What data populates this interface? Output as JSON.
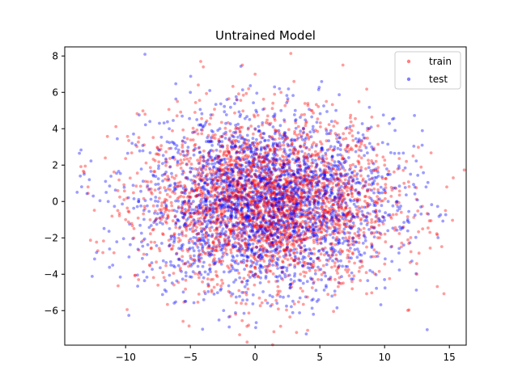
{
  "chart_data": {
    "type": "scatter",
    "title": "Untrained Model",
    "xlabel": "",
    "ylabel": "",
    "xlim": [
      -14.7,
      16.3
    ],
    "ylim": [
      -7.9,
      8.5
    ],
    "xticks": [
      -10,
      -5,
      0,
      5,
      10,
      15
    ],
    "yticks": [
      -6,
      -4,
      -2,
      0,
      2,
      4,
      6,
      8
    ],
    "grid": false,
    "legend_position": "top-right",
    "series": [
      {
        "name": "train",
        "color": "#ff0000",
        "alpha": 0.4,
        "sampled_points": [
          [
            -4.2,
            7.7
          ],
          [
            -4.0,
            7.4
          ],
          [
            0.0,
            7.0
          ],
          [
            3.0,
            6.6
          ],
          [
            -0.5,
            6.2
          ],
          [
            3.2,
            -7.2
          ],
          [
            -0.5,
            -6.8
          ],
          [
            14.8,
            0.8
          ],
          [
            14.7,
            -0.5
          ],
          [
            13.5,
            -1.7
          ],
          [
            -13.2,
            1.6
          ],
          [
            -12.9,
            0.8
          ],
          [
            12.2,
            2.5
          ],
          [
            11.5,
            1.0
          ],
          [
            -9.0,
            -4.3
          ],
          [
            -7.5,
            -4.6
          ],
          [
            7.5,
            -4.8
          ],
          [
            8.8,
            4.0
          ],
          [
            -8.5,
            4.8
          ],
          [
            2.0,
            6.0
          ],
          [
            -1.5,
            -6.2
          ],
          [
            5.5,
            5.5
          ],
          [
            -6.0,
            5.5
          ],
          [
            6.5,
            -4.5
          ],
          [
            1.0,
            0.0
          ],
          [
            2.0,
            0.5
          ],
          [
            3.0,
            -0.5
          ],
          [
            -1.0,
            -1.0
          ],
          [
            0.0,
            1.5
          ],
          [
            -2.0,
            2.0
          ],
          [
            4.0,
            2.5
          ],
          [
            -3.0,
            -2.0
          ],
          [
            5.0,
            -1.5
          ],
          [
            1.5,
            -3.0
          ],
          [
            -4.0,
            0.5
          ],
          [
            6.0,
            1.0
          ],
          [
            -5.0,
            -3.0
          ],
          [
            7.0,
            -2.0
          ],
          [
            -6.0,
            2.0
          ],
          [
            8.0,
            0.5
          ],
          [
            -7.0,
            0.0
          ],
          [
            9.0,
            -1.0
          ],
          [
            2.5,
            3.5
          ],
          [
            -1.5,
            4.0
          ],
          [
            3.5,
            -4.0
          ],
          [
            -2.5,
            -4.5
          ],
          [
            0.5,
            -2.0
          ],
          [
            -0.5,
            2.5
          ],
          [
            10.0,
            2.0
          ],
          [
            -10.0,
            -1.0
          ]
        ]
      },
      {
        "name": "test",
        "color": "#0000ff",
        "alpha": 0.4,
        "sampled_points": [
          [
            -13.2,
            1.5
          ],
          [
            -12.8,
            1.2
          ],
          [
            -13.5,
            1.4
          ],
          [
            -12.5,
            0.3
          ],
          [
            -2.0,
            -6.9
          ],
          [
            4.5,
            -6.2
          ],
          [
            -5.0,
            6.0
          ],
          [
            13.2,
            0.8
          ],
          [
            12.8,
            -0.3
          ],
          [
            12.0,
            1.5
          ],
          [
            -11.0,
            -3.5
          ],
          [
            -9.5,
            3.2
          ],
          [
            9.0,
            3.0
          ],
          [
            10.5,
            -2.5
          ],
          [
            1.5,
            6.3
          ],
          [
            -3.5,
            6.1
          ],
          [
            0.0,
            0.0
          ],
          [
            1.0,
            1.0
          ],
          [
            -1.0,
            0.5
          ],
          [
            2.0,
            -1.0
          ],
          [
            3.0,
            1.5
          ],
          [
            -2.0,
            -0.5
          ],
          [
            4.0,
            -0.5
          ],
          [
            -3.0,
            1.0
          ],
          [
            0.5,
            -1.5
          ],
          [
            5.0,
            0.5
          ],
          [
            -4.0,
            -1.5
          ],
          [
            6.0,
            -0.5
          ],
          [
            1.5,
            2.5
          ],
          [
            -1.5,
            -2.5
          ],
          [
            2.5,
            -2.5
          ],
          [
            -2.5,
            3.0
          ],
          [
            3.5,
            3.0
          ],
          [
            -3.5,
            -3.0
          ],
          [
            7.0,
            1.5
          ],
          [
            -6.0,
            -1.0
          ],
          [
            8.0,
            -1.5
          ],
          [
            -7.0,
            1.5
          ],
          [
            0.0,
            -4.0
          ],
          [
            0.0,
            4.0
          ],
          [
            4.5,
            -4.5
          ],
          [
            -4.5,
            4.5
          ],
          [
            9.5,
            0.5
          ],
          [
            -9.0,
            0.0
          ],
          [
            6.5,
            3.5
          ],
          [
            -6.5,
            -3.5
          ],
          [
            11.0,
            -0.5
          ],
          [
            -11.5,
            0.5
          ],
          [
            2.0,
            5.0
          ],
          [
            -1.0,
            -5.0
          ]
        ]
      }
    ]
  }
}
